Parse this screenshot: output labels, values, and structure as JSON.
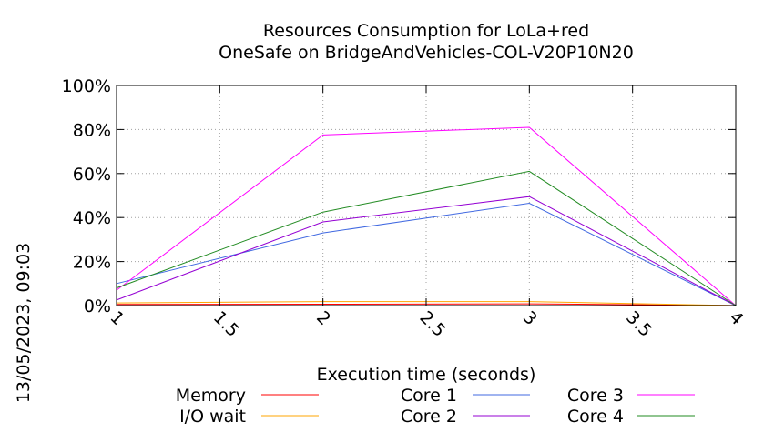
{
  "chart_data": {
    "type": "line",
    "title": "Resources Consumption for LoLa+red",
    "subtitle": "OneSafe on BridgeAndVehicles-COL-V20P10N20",
    "xlabel": "Execution time (seconds)",
    "ylabel": "",
    "xlim": [
      1,
      4
    ],
    "ylim": [
      0,
      100
    ],
    "x_ticks": [
      1,
      1.5,
      2,
      2.5,
      3,
      3.5,
      4
    ],
    "x_tick_labels": [
      "1",
      "1.5",
      "2",
      "2.5",
      "3",
      "3.5",
      "4"
    ],
    "y_ticks": [
      0,
      20,
      40,
      60,
      80,
      100
    ],
    "y_tick_labels": [
      "0%",
      "20%",
      "40%",
      "60%",
      "80%",
      "100%"
    ],
    "grid": true,
    "legend_position": "bottom",
    "x": [
      1,
      2,
      3,
      4
    ],
    "series": [
      {
        "name": "Memory",
        "color": "#ff0000",
        "values": [
          0.5,
          0.6,
          0.8,
          0
        ]
      },
      {
        "name": "I/O wait",
        "color": "#ffa500",
        "values": [
          1.2,
          1.8,
          1.8,
          0
        ]
      },
      {
        "name": "Core 1",
        "color": "#4169e1",
        "values": [
          10,
          33,
          46.5,
          0
        ]
      },
      {
        "name": "Core 2",
        "color": "#9400d3",
        "values": [
          2.5,
          38,
          49.5,
          0
        ]
      },
      {
        "name": "Core 3",
        "color": "#ff00ff",
        "values": [
          7,
          77.5,
          81,
          0
        ]
      },
      {
        "name": "Core 4",
        "color": "#228b22",
        "values": [
          8,
          42.5,
          61,
          0
        ]
      }
    ]
  },
  "timestamp": "13/05/2023, 09:03"
}
